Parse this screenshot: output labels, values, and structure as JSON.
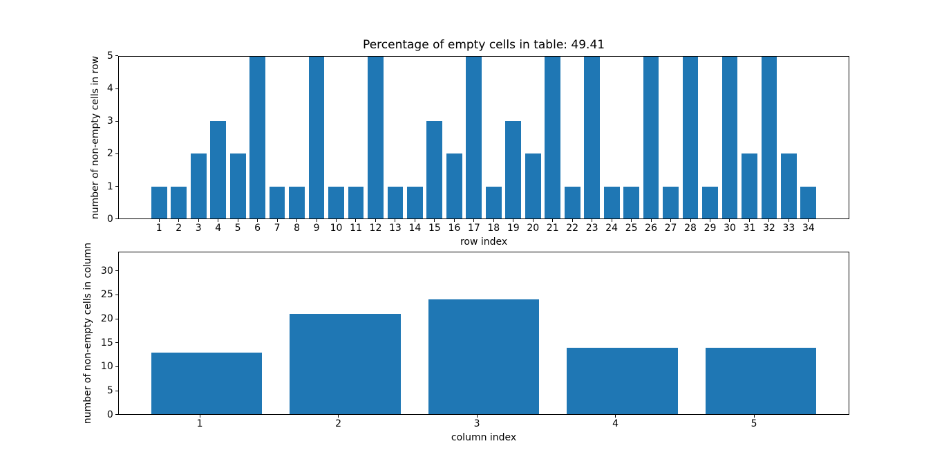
{
  "figure": {
    "background": "#ffffff",
    "bar_color": "#1f77b4",
    "axis_color": "#000000",
    "text_color": "#000000"
  },
  "chart_data": [
    {
      "type": "bar",
      "title": "Percentage of empty cells in table: 49.41",
      "xlabel": "row index",
      "ylabel": "number of non-empty cells in row",
      "categories": [
        1,
        2,
        3,
        4,
        5,
        6,
        7,
        8,
        9,
        10,
        11,
        12,
        13,
        14,
        15,
        16,
        17,
        18,
        19,
        20,
        21,
        22,
        23,
        24,
        25,
        26,
        27,
        28,
        29,
        30,
        31,
        32,
        33,
        34
      ],
      "values": [
        1,
        1,
        2,
        3,
        2,
        5,
        1,
        1,
        5,
        1,
        1,
        5,
        1,
        1,
        3,
        2,
        5,
        1,
        3,
        2,
        5,
        1,
        5,
        1,
        1,
        5,
        1,
        5,
        1,
        5,
        2,
        5,
        2,
        1
      ],
      "bar_width": 0.8,
      "bar_offset": 0,
      "xlim": [
        -1.09,
        36.09
      ],
      "ylim": [
        0,
        5
      ],
      "yticks": [
        0,
        1,
        2,
        3,
        4,
        5
      ],
      "grid": false,
      "legend": null
    },
    {
      "type": "bar",
      "title": "",
      "xlabel": "column index",
      "ylabel": "number of non-empty cells in column",
      "categories": [
        1,
        2,
        3,
        4,
        5
      ],
      "values": [
        13,
        21,
        24,
        14,
        14
      ],
      "bar_width": 0.8,
      "bar_offset": 0.05,
      "xlim": [
        0.41,
        5.69
      ],
      "ylim": [
        0,
        34
      ],
      "yticks": [
        0,
        5,
        10,
        15,
        20,
        25,
        30
      ],
      "grid": false,
      "legend": null
    }
  ]
}
